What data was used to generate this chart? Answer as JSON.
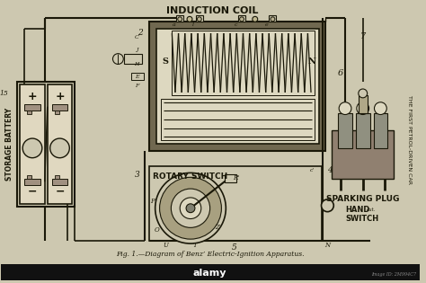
{
  "bg_color": "#cdc8b0",
  "line_color": "#1a1808",
  "title": "INDUCTION COIL",
  "label_storage": "STORAGE BATTERY",
  "label_rotary": "ROTARY SWITCH",
  "label_sparking": "SPARKING PLUG",
  "label_hand": "HAND\nSWITCH",
  "label_right": "THE FIRST PETROL-DRIVEN CAR",
  "caption": "Fig. 1.—Diagram of Benz’ Electric-Ignition Apparatus.",
  "coil_dark_color": "#706850",
  "coil_mid_color": "#a8a080",
  "coil_light_color": "#ddd8c0",
  "battery_color": "#e0d8c0",
  "sparking_color": "#908070"
}
